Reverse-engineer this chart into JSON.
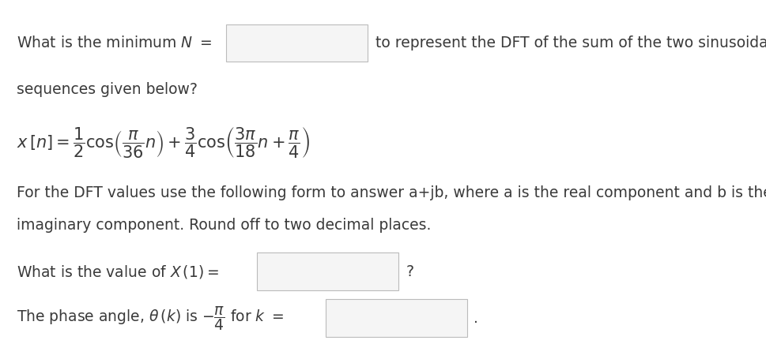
{
  "background_color": "#ffffff",
  "text_color": "#3a3a3a",
  "box_face_color": "#f5f5f5",
  "box_edge_color": "#bbbbbb",
  "desc1": "For the DFT values use the following form to answer a+jb, where a is the real component and b is the",
  "desc2": "imaginary component. Round off to two decimal places.",
  "fontsize_main": 13.5,
  "fontsize_formula": 15
}
